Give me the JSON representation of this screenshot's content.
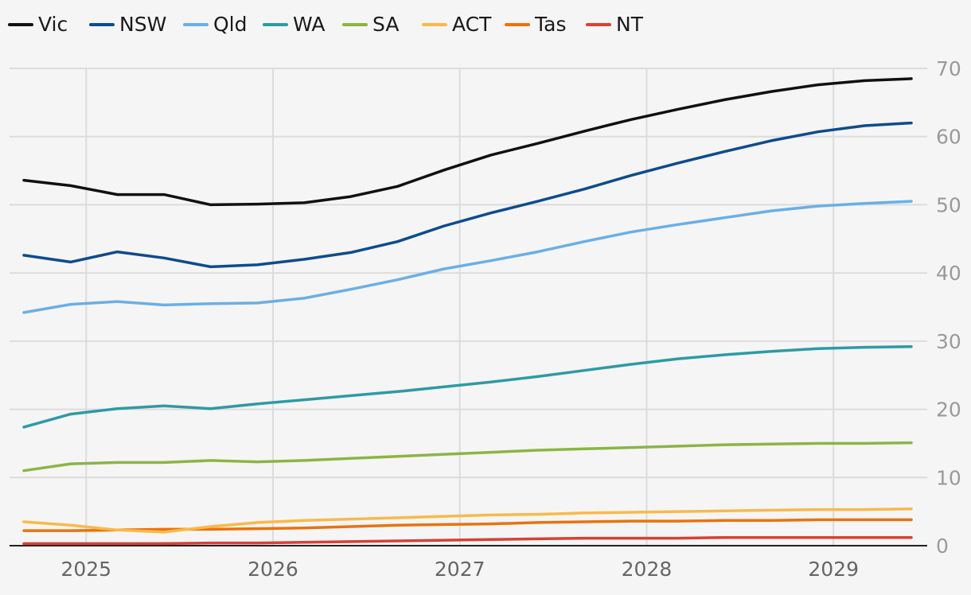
{
  "chart_data": {
    "type": "line",
    "title": "",
    "xlabel": "",
    "ylabel": "",
    "x": [
      "2024-09",
      "2024-12",
      "2025-03",
      "2025-06",
      "2025-09",
      "2025-12",
      "2026-03",
      "2026-06",
      "2026-09",
      "2026-12",
      "2027-03",
      "2027-06",
      "2027-09",
      "2027-12",
      "2028-03",
      "2028-06",
      "2028-09",
      "2028-12",
      "2029-03",
      "2029-06"
    ],
    "x_tick_labels": [
      "2025",
      "2026",
      "2027",
      "2028",
      "2029"
    ],
    "xlim": [
      "2024-09",
      "2029-06"
    ],
    "ylim": [
      0,
      70
    ],
    "y_ticks": [
      0,
      10,
      20,
      30,
      40,
      50,
      60,
      70
    ],
    "y_axis_side": "right",
    "grid": true,
    "legend_position": "top-left",
    "series": [
      {
        "name": "Vic",
        "color": "#111111",
        "values": [
          53.6,
          52.8,
          51.5,
          51.5,
          50.0,
          50.1,
          50.3,
          51.2,
          52.7,
          55.1,
          57.3,
          59.0,
          60.8,
          62.5,
          64.0,
          65.4,
          66.6,
          67.6,
          68.2,
          68.5
        ]
      },
      {
        "name": "NSW",
        "color": "#0d4c8c",
        "values": [
          42.6,
          41.6,
          43.1,
          42.2,
          40.9,
          41.2,
          42.0,
          43.0,
          44.6,
          46.9,
          48.8,
          50.5,
          52.3,
          54.3,
          56.1,
          57.8,
          59.4,
          60.7,
          61.6,
          62.0
        ]
      },
      {
        "name": "Qld",
        "color": "#6aafe6",
        "values": [
          34.2,
          35.4,
          35.8,
          35.3,
          35.5,
          35.6,
          36.3,
          37.6,
          39.0,
          40.6,
          41.8,
          43.1,
          44.6,
          46.0,
          47.1,
          48.1,
          49.1,
          49.8,
          50.2,
          50.5
        ]
      },
      {
        "name": "WA",
        "color": "#2e9aa6",
        "values": [
          17.4,
          19.3,
          20.1,
          20.5,
          20.1,
          20.8,
          21.4,
          22.0,
          22.6,
          23.3,
          24.0,
          24.8,
          25.7,
          26.6,
          27.4,
          28.0,
          28.5,
          28.9,
          29.1,
          29.2
        ]
      },
      {
        "name": "SA",
        "color": "#8bb544",
        "values": [
          11.0,
          12.0,
          12.2,
          12.2,
          12.5,
          12.3,
          12.5,
          12.8,
          13.1,
          13.4,
          13.7,
          14.0,
          14.2,
          14.4,
          14.6,
          14.8,
          14.9,
          15.0,
          15.0,
          15.1
        ]
      },
      {
        "name": "ACT",
        "color": "#f9b94a",
        "values": [
          3.5,
          3.0,
          2.3,
          2.0,
          2.8,
          3.4,
          3.7,
          3.9,
          4.1,
          4.3,
          4.5,
          4.6,
          4.8,
          4.9,
          5.0,
          5.1,
          5.2,
          5.3,
          5.3,
          5.4
        ]
      },
      {
        "name": "Tas",
        "color": "#e8730f",
        "values": [
          2.2,
          2.2,
          2.3,
          2.4,
          2.4,
          2.5,
          2.6,
          2.8,
          3.0,
          3.1,
          3.2,
          3.4,
          3.5,
          3.6,
          3.6,
          3.7,
          3.7,
          3.8,
          3.8,
          3.8
        ]
      },
      {
        "name": "NT",
        "color": "#d84034",
        "values": [
          0.3,
          0.3,
          0.3,
          0.3,
          0.4,
          0.4,
          0.5,
          0.6,
          0.7,
          0.8,
          0.9,
          1.0,
          1.1,
          1.1,
          1.1,
          1.2,
          1.2,
          1.2,
          1.2,
          1.2
        ]
      }
    ]
  }
}
